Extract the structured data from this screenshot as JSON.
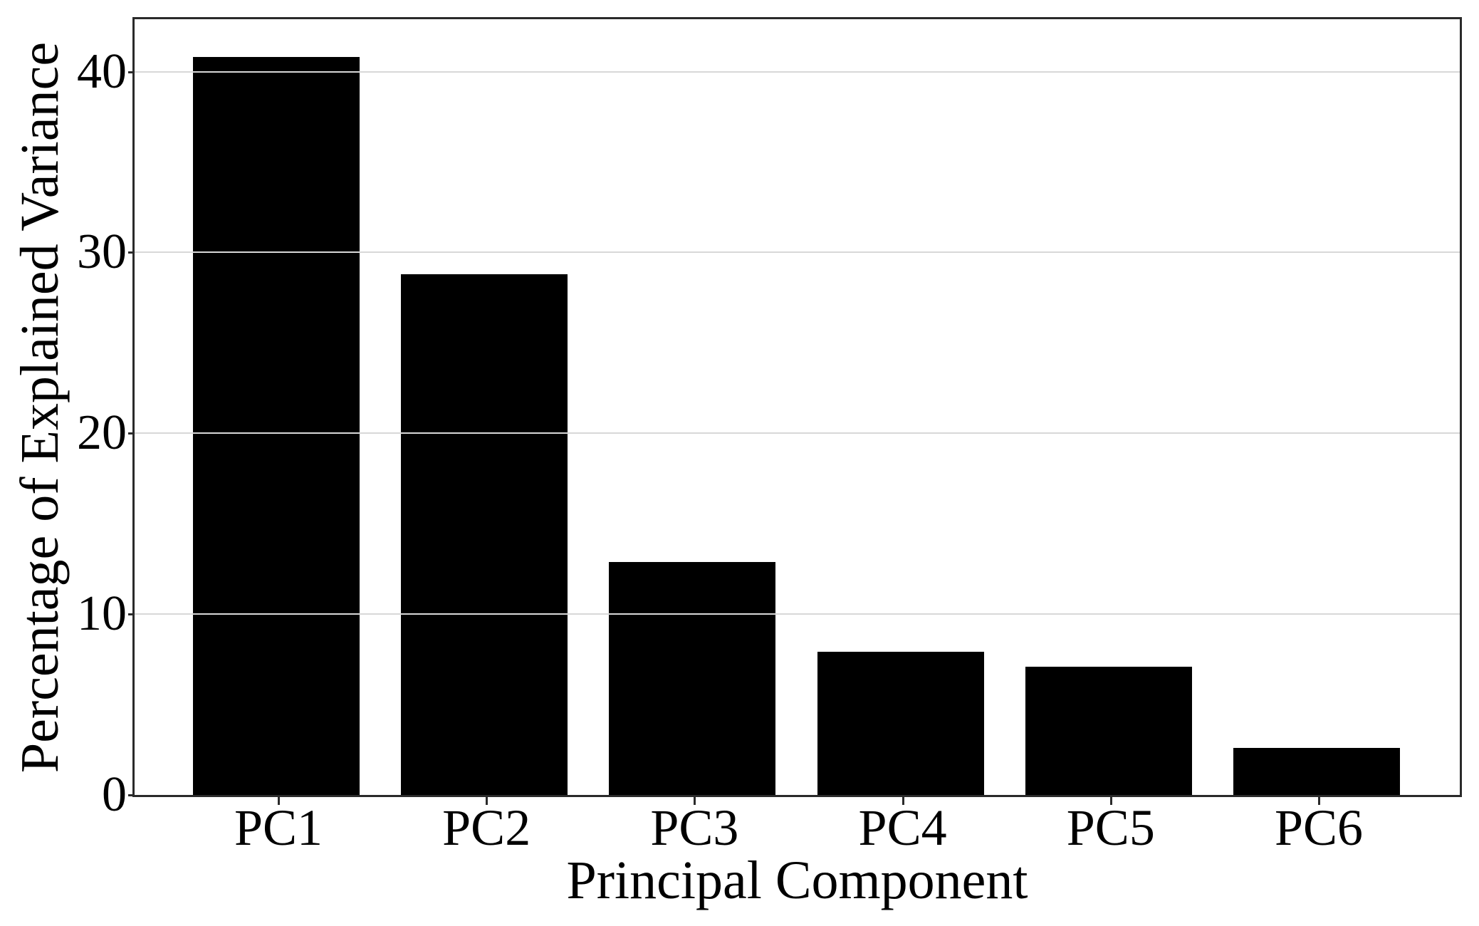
{
  "chart_data": {
    "type": "bar",
    "categories": [
      "PC1",
      "PC2",
      "PC3",
      "PC4",
      "PC5",
      "PC6"
    ],
    "values": [
      40.8,
      28.8,
      12.9,
      7.9,
      7.1,
      2.6
    ],
    "title": "",
    "xlabel": "Principal Component",
    "ylabel": "Percentage of Explained Variance",
    "yticks": [
      0,
      10,
      20,
      30,
      40
    ],
    "ylim": [
      0,
      42.9
    ],
    "xlim_slots": 6,
    "grid": "horizontal-on-top",
    "legend": "none",
    "bar_color": "#000000",
    "gridline_color": "#d8d8d8",
    "spine_color": "#2a2a2a",
    "background_color": "#ffffff"
  }
}
